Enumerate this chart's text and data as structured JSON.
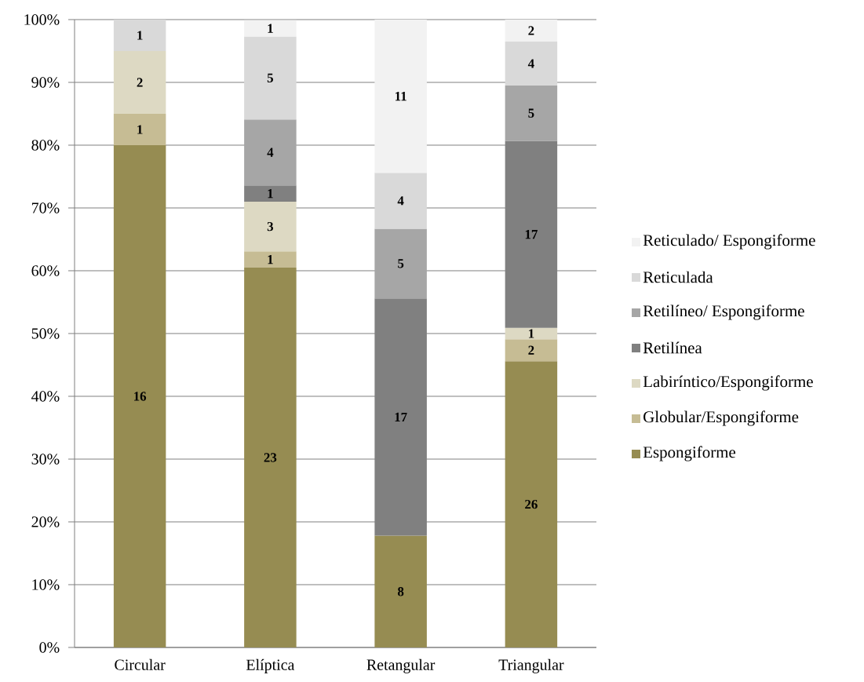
{
  "chart_data": {
    "type": "bar",
    "stacked": true,
    "categories": [
      "Circular",
      "Elíptica",
      "Retangular",
      "Triangular"
    ],
    "ylim": [
      0,
      100
    ],
    "yticks": [
      {
        "value": 0,
        "label": "0%"
      },
      {
        "value": 10,
        "label": "10%"
      },
      {
        "value": 20,
        "label": "20%"
      },
      {
        "value": 30,
        "label": "30%"
      },
      {
        "value": 40,
        "label": "40%"
      },
      {
        "value": 50,
        "label": "50%"
      },
      {
        "value": 60,
        "label": "60%"
      },
      {
        "value": 70,
        "label": "70%"
      },
      {
        "value": 80,
        "label": "80%"
      },
      {
        "value": 90,
        "label": "90%"
      },
      {
        "value": 100,
        "label": "100%"
      }
    ],
    "grid": "y",
    "legend": "right",
    "series": [
      {
        "name": "Espongiforme",
        "color": "#968c52",
        "values": [
          80.0,
          60.5,
          17.8,
          45.6
        ]
      },
      {
        "name": "Globular/Espongiforme",
        "color": "#c6bc94",
        "values": [
          5.0,
          2.6,
          null,
          3.5
        ]
      },
      {
        "name": "Labiríntico/Espongiforme",
        "color": "#ddd9c3",
        "values": [
          10.0,
          7.9,
          null,
          1.8
        ]
      },
      {
        "name": "Retilínea",
        "color": "#808080",
        "values": [
          null,
          2.6,
          37.8,
          29.8
        ]
      },
      {
        "name": "Retilíneo/ Espongiforme",
        "color": "#a6a6a6",
        "values": [
          null,
          10.5,
          11.1,
          8.8
        ]
      },
      {
        "name": "Reticulada",
        "color": "#d9d9d9",
        "values": [
          5.0,
          13.2,
          8.9,
          7.0
        ]
      },
      {
        "name": "Reticulado/ Espongiforme",
        "color": "#f2f2f2",
        "values": [
          null,
          2.6,
          24.4,
          3.5
        ]
      }
    ],
    "annotations": [
      "16",
      "1",
      "2",
      "1",
      "23",
      "1",
      "3",
      "1",
      "4",
      "5",
      "1",
      "8",
      "17",
      "5",
      "4",
      "11",
      "26",
      "2",
      "1",
      "17",
      "5",
      "4",
      "2"
    ]
  }
}
